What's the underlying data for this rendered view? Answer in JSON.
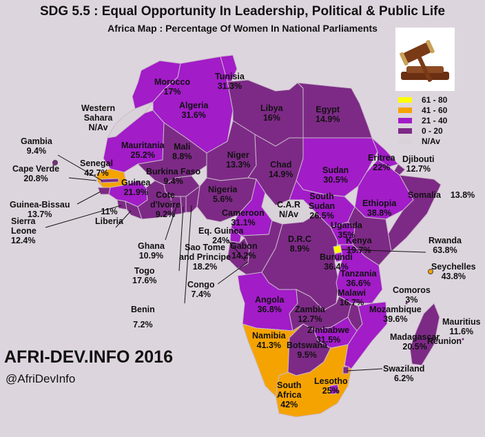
{
  "title": "SDG 5.5 : Equal Opportunity In Leadership, Political & Public Life",
  "subtitle": "Africa Map : Percentage Of Women In National Parliaments",
  "brand": "AFRI-DEV.INFO 2016",
  "handle": "@AfriDevInfo",
  "colors": {
    "b61_80": "#ffff00",
    "b41_60": "#f5a300",
    "b21_40": "#a21cc8",
    "b0_20": "#7d2a86",
    "na": "#d9d2d9"
  },
  "legend": [
    {
      "label": "61 - 80",
      "color": "#ffff00"
    },
    {
      "label": "41 - 60",
      "color": "#f5a300"
    },
    {
      "label": "21 - 40",
      "color": "#a21cc8"
    },
    {
      "label": "0 -  20",
      "color": "#7d2a86"
    },
    {
      "label": "N/Av",
      "color": "#d9d2d9"
    }
  ],
  "countries": [
    {
      "name": "Morocco",
      "value": "17%"
    },
    {
      "name": "Tunisia",
      "value": "31.3%"
    },
    {
      "name": "Algeria",
      "value": "31.6%"
    },
    {
      "name": "Libya",
      "value": "16%"
    },
    {
      "name": "Egypt",
      "value": "14.9%"
    },
    {
      "name": "Western Sahara",
      "name1": "Western",
      "name2": "Sahara",
      "value": "N/Av"
    },
    {
      "name": "Mauritania",
      "value": "25.2%"
    },
    {
      "name": "Mali",
      "value": "8.8%"
    },
    {
      "name": "Niger",
      "value": "13.3%"
    },
    {
      "name": "Chad",
      "value": "14.9%"
    },
    {
      "name": "Sudan",
      "value": "30.5%"
    },
    {
      "name": "Eritrea",
      "value": "22%"
    },
    {
      "name": "Djibouti",
      "value": "12.7%"
    },
    {
      "name": "Somalia",
      "value": "13.8%"
    },
    {
      "name": "Gambia",
      "value": "9.4%"
    },
    {
      "name": "Cape Verde",
      "value": "20.8%"
    },
    {
      "name": "Senegal",
      "value": "42.7%"
    },
    {
      "name": "Guinea",
      "value": "21.9%"
    },
    {
      "name": "Burkina Faso",
      "value": "9.4%"
    },
    {
      "name": "Nigeria",
      "value": "5.6%"
    },
    {
      "name": "Cote d'Ivoire",
      "name1": "Cote",
      "name2": "d'Ivoire",
      "value": "9.2%"
    },
    {
      "name": "Guinea-Bissau",
      "value": "13.7%"
    },
    {
      "name": "C.A.R",
      "value": "N/Av"
    },
    {
      "name": "South Sudan",
      "name1": "South",
      "name2": "Sudan",
      "value": "26.5%"
    },
    {
      "name": "Ethiopia",
      "value": "38.8%"
    },
    {
      "name": "Cameroon",
      "value": "31.1%"
    },
    {
      "name": "Liberia",
      "value": "11%"
    },
    {
      "name": "Sierra Leone",
      "name1": "Sierra",
      "name2": "Leone",
      "value": "12.4%"
    },
    {
      "name": "Eq. Guinea",
      "value": "24%"
    },
    {
      "name": "Uganda",
      "value": "35%"
    },
    {
      "name": "Kenya",
      "value": "19.7%"
    },
    {
      "name": "Rwanda",
      "value": "63.8%"
    },
    {
      "name": "D.R.C",
      "value": "8.9%"
    },
    {
      "name": "Gabon",
      "value": "14.2%"
    },
    {
      "name": "Burundi",
      "value": "36.4%"
    },
    {
      "name": "Ghana",
      "value": "10.9%"
    },
    {
      "name": "Sao Tome and Principe",
      "name1": "Sao Tome",
      "name2": "and Principe",
      "value": "18.2%"
    },
    {
      "name": "Seychelles",
      "value": "43.8%"
    },
    {
      "name": "Tanzania",
      "value": "36.6%"
    },
    {
      "name": "Togo",
      "value": "17.6%"
    },
    {
      "name": "Congo",
      "value": "7.4%"
    },
    {
      "name": "Comoros",
      "value": "3%"
    },
    {
      "name": "Malawi",
      "value": "16.7%"
    },
    {
      "name": "Angola",
      "value": "36.8%"
    },
    {
      "name": "Zambia",
      "value": "12.7%"
    },
    {
      "name": "Mozambique",
      "value": "39.6%"
    },
    {
      "name": "Benin",
      "value": "7.2%"
    },
    {
      "name": "Mauritius",
      "value": "11.6%"
    },
    {
      "name": "Zimbabwe",
      "value": "31.5%"
    },
    {
      "name": "Madagascar",
      "value": "20.5%"
    },
    {
      "name": "Reunion",
      "value": "Réunion"
    },
    {
      "name": "Namibia",
      "value": "41.3%"
    },
    {
      "name": "Botswana",
      "value": "9.5%"
    },
    {
      "name": "Swaziland",
      "value": "6.2%"
    },
    {
      "name": "Lesotho",
      "value": "25%"
    },
    {
      "name": "South Africa",
      "name1": "South",
      "name2": "Africa",
      "value": "42%"
    }
  ]
}
